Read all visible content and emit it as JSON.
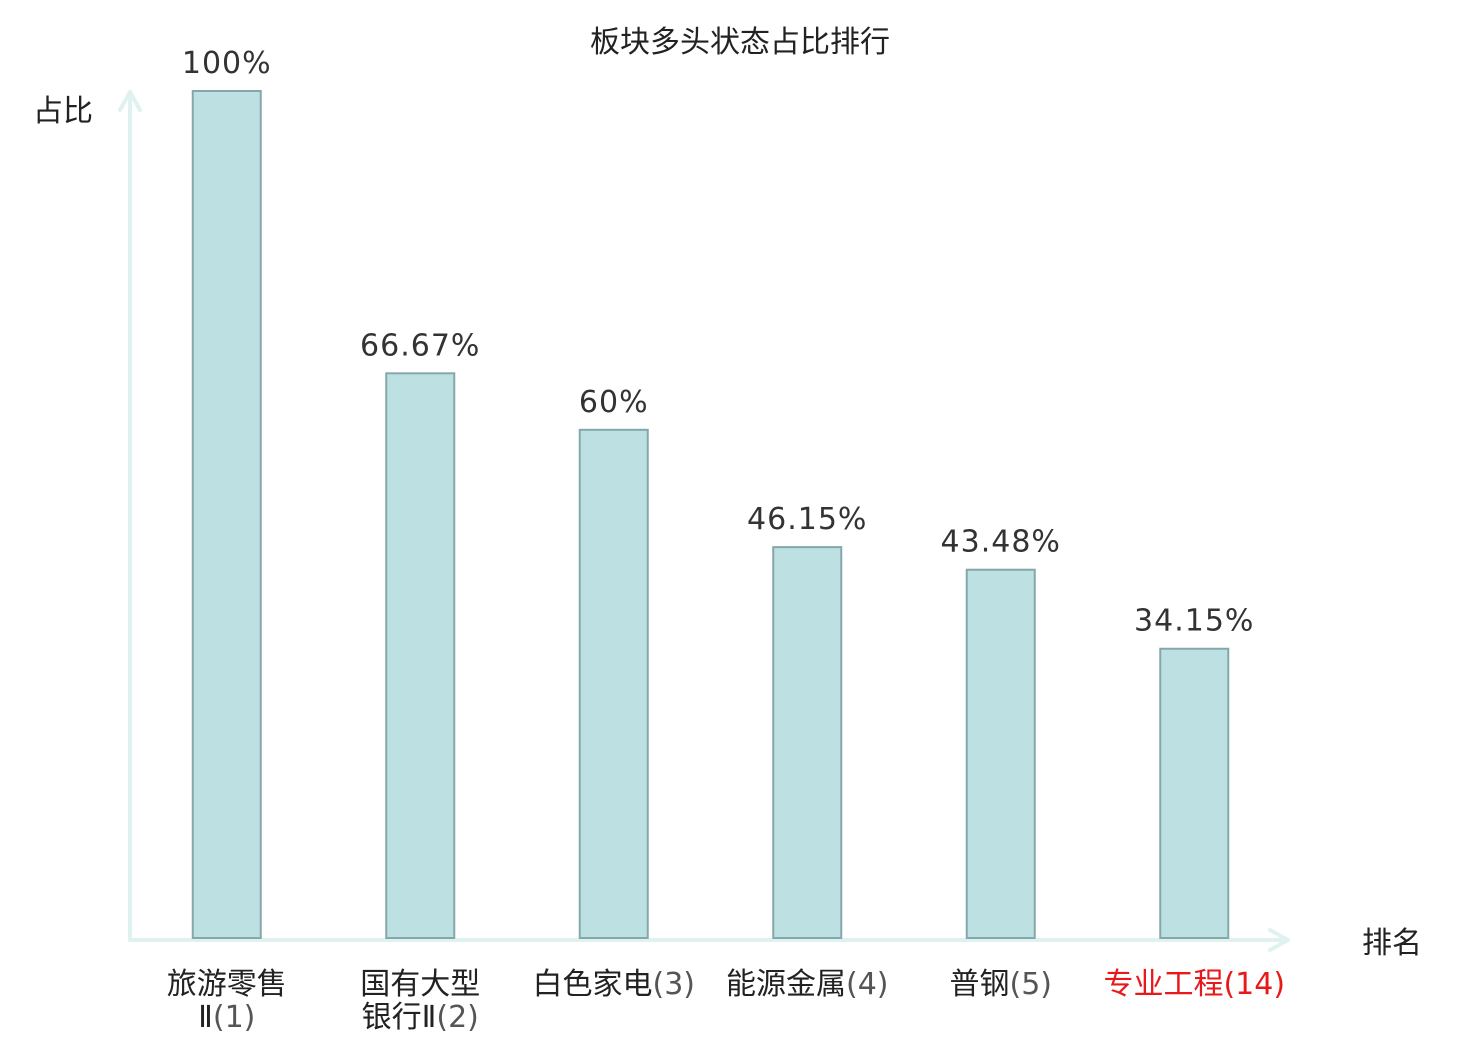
{
  "chart_data": {
    "type": "bar",
    "title": "板块多头状态占比排行",
    "ylabel": "占比",
    "xlabel": "排名",
    "categories": [
      [
        "旅游零售",
        "Ⅱ(1)"
      ],
      [
        "国有大型",
        "银行Ⅱ(2)"
      ],
      [
        "白色家电(3)"
      ],
      [
        "能源金属(4)"
      ],
      [
        "普钢(5)"
      ],
      [
        "专业工程(14)"
      ]
    ],
    "values": [
      100,
      66.67,
      60,
      46.15,
      43.48,
      34.15
    ],
    "value_labels": [
      "100%",
      "66.67%",
      "60%",
      "46.15%",
      "43.48%",
      "34.15%"
    ],
    "highlight_index": 5,
    "ylim": [
      0,
      100
    ],
    "grid": false,
    "legend": "none"
  },
  "colors": {
    "bar_fill": "#bde1e3",
    "bar_stroke": "#86a7a9",
    "axis": "#dff2ef",
    "highlight_text": "#e8191a"
  }
}
